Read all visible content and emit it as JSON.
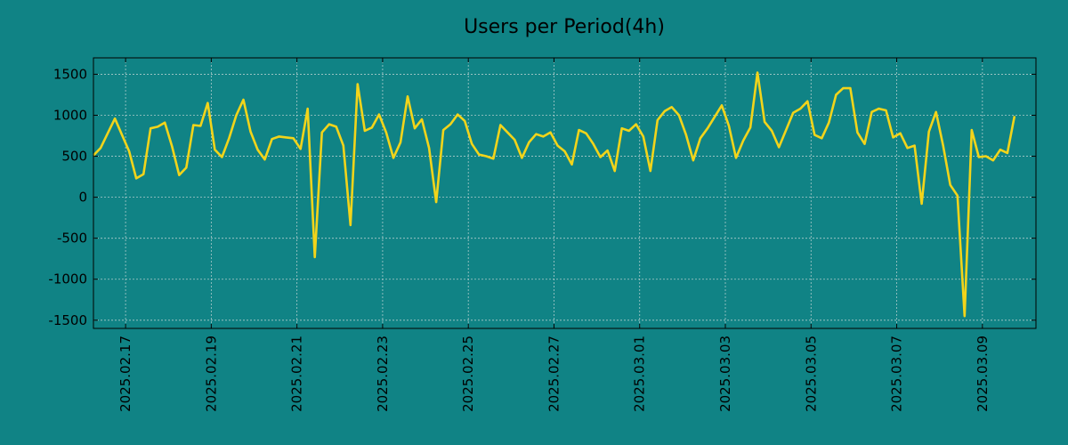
{
  "chart_data": {
    "type": "line",
    "title": "Users per Period(4h)",
    "xlabel": "",
    "ylabel": "",
    "ylim": [
      -1600,
      1700
    ],
    "xlim": [
      "2025-02-16 06:00",
      "2025-03-10 06:00"
    ],
    "grid": true,
    "colors": {
      "background": "#108385",
      "line": "#f2d41a",
      "axes": "#000000"
    },
    "yticks": [
      1500,
      1000,
      500,
      0,
      -500,
      -1000,
      -1500
    ],
    "ytick_labels": [
      "1500",
      "1000",
      "500",
      "0",
      "-500",
      "-1000",
      "-1500"
    ],
    "xticks": [
      "2025-02-17",
      "2025-02-19",
      "2025-02-21",
      "2025-02-23",
      "2025-02-25",
      "2025-02-27",
      "2025-03-01",
      "2025-03-03",
      "2025-03-05",
      "2025-03-07",
      "2025-03-09"
    ],
    "xtick_labels": [
      "2025.02.17",
      "2025.02.19",
      "2025.02.21",
      "2025.02.23",
      "2025.02.25",
      "2025.02.27",
      "2025.03.01",
      "2025.03.03",
      "2025.03.05",
      "2025.03.07",
      "2025.03.09"
    ],
    "series": [
      {
        "name": "Users",
        "x_start": "2025-02-16 06:00",
        "step_hours": 4,
        "values": [
          510,
          600,
          780,
          960,
          760,
          560,
          230,
          280,
          840,
          860,
          910,
          620,
          270,
          360,
          880,
          870,
          1150,
          580,
          490,
          720,
          1000,
          1190,
          800,
          580,
          460,
          710,
          740,
          730,
          720,
          590,
          1080,
          -730,
          790,
          890,
          860,
          630,
          -340,
          1380,
          810,
          850,
          1010,
          790,
          480,
          670,
          1230,
          840,
          950,
          600,
          -60,
          820,
          890,
          1010,
          930,
          650,
          520,
          500,
          470,
          880,
          790,
          700,
          480,
          670,
          770,
          740,
          790,
          630,
          560,
          400,
          820,
          780,
          650,
          490,
          570,
          320,
          840,
          810,
          890,
          740,
          320,
          940,
          1050,
          1100,
          1000,
          760,
          450,
          720,
          840,
          980,
          1120,
          870,
          480,
          690,
          850,
          1520,
          920,
          810,
          610,
          820,
          1030,
          1080,
          1170,
          760,
          720,
          910,
          1250,
          1330,
          1330,
          790,
          650,
          1040,
          1080,
          1060,
          730,
          780,
          600,
          630,
          -80,
          800,
          1040,
          630,
          150,
          20,
          -1450,
          820,
          490,
          500,
          450,
          580,
          540,
          990
        ]
      }
    ]
  }
}
